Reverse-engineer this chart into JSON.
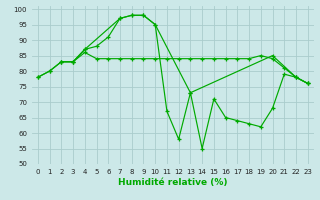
{
  "xlabel": "Humidité relative (%)",
  "background_color": "#cce8e8",
  "grid_color": "#aacccc",
  "line_color": "#00aa00",
  "xlim": [
    -0.5,
    23.5
  ],
  "ylim": [
    50,
    101
  ],
  "xticks": [
    0,
    1,
    2,
    3,
    4,
    5,
    6,
    7,
    8,
    9,
    10,
    11,
    12,
    13,
    14,
    15,
    16,
    17,
    18,
    19,
    20,
    21,
    22,
    23
  ],
  "yticks": [
    50,
    55,
    60,
    65,
    70,
    75,
    80,
    85,
    90,
    95,
    100
  ],
  "series1_x": [
    0,
    1,
    2,
    3,
    4,
    5,
    6,
    7,
    8,
    9,
    10,
    11,
    12,
    13,
    14,
    15,
    16,
    17,
    18,
    19,
    20,
    21,
    22,
    23
  ],
  "series1_y": [
    78,
    80,
    83,
    83,
    86,
    84,
    84,
    84,
    84,
    84,
    84,
    84,
    84,
    84,
    84,
    84,
    84,
    84,
    84,
    85,
    84,
    81,
    78,
    76
  ],
  "series2_x": [
    0,
    1,
    2,
    3,
    4,
    5,
    6,
    7,
    8,
    9,
    10,
    11,
    12,
    13,
    14,
    15,
    16,
    17,
    18,
    19,
    20,
    21,
    22,
    23
  ],
  "series2_y": [
    78,
    80,
    83,
    83,
    87,
    88,
    91,
    97,
    98,
    98,
    95,
    67,
    58,
    73,
    55,
    71,
    65,
    64,
    63,
    62,
    68,
    79,
    78,
    76
  ],
  "series3_x": [
    2,
    3,
    4,
    7,
    8,
    9,
    10,
    13,
    20,
    22,
    23
  ],
  "series3_y": [
    83,
    83,
    87,
    97,
    98,
    98,
    95,
    73,
    85,
    78,
    76
  ],
  "xlabel_fontsize": 6.5,
  "tick_fontsize": 5.0
}
